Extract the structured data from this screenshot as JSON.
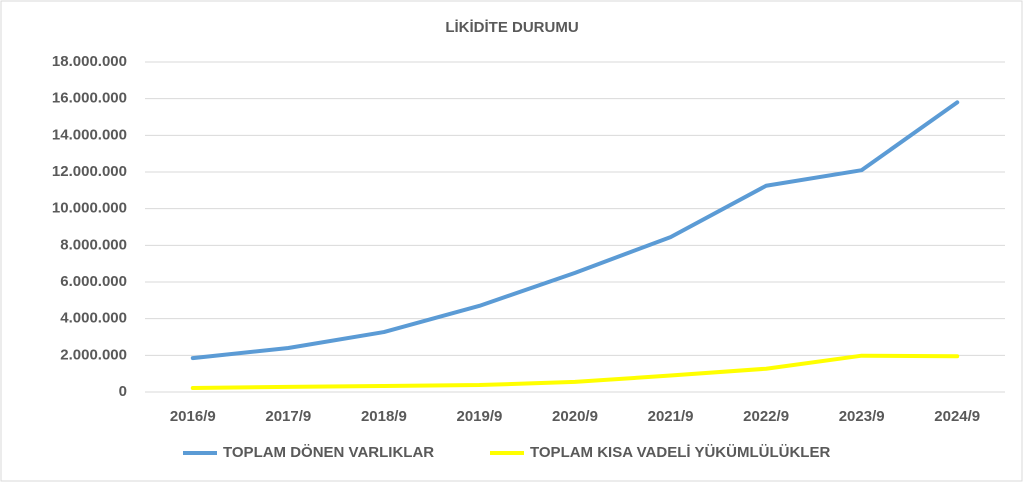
{
  "chart_data": {
    "type": "line",
    "title": "LİKİDİTE DURUMU",
    "categories": [
      "2016/9",
      "2017/9",
      "2018/9",
      "2019/9",
      "2020/9",
      "2021/9",
      "2022/9",
      "2023/9",
      "2024/9"
    ],
    "series": [
      {
        "name": "TOPLAM DÖNEN VARLIKLAR",
        "color": "#5b9bd5",
        "values": [
          1850000,
          2400000,
          3270000,
          4700000,
          6500000,
          8450000,
          11250000,
          12100000,
          15800000
        ]
      },
      {
        "name": "TOPLAM KISA VADELİ YÜKÜMLÜLÜKLER",
        "color": "#ffff00",
        "values": [
          220000,
          280000,
          330000,
          380000,
          550000,
          900000,
          1270000,
          1980000,
          1950000
        ]
      }
    ],
    "ylim": [
      0,
      18000000
    ],
    "yticks": [
      0,
      {
        "value": 2000000,
        "label": "2.000.000"
      },
      {
        "value": 4000000,
        "label": "4.000.000"
      },
      {
        "value": 6000000,
        "label": "6.000.000"
      },
      {
        "value": 8000000,
        "label": "8.000.000"
      },
      {
        "value": 10000000,
        "label": "10.000.000"
      },
      {
        "value": 12000000,
        "label": "12.000.000"
      },
      {
        "value": 14000000,
        "label": "14.000.000"
      },
      {
        "value": 16000000,
        "label": "16.000.000"
      },
      {
        "value": 18000000,
        "label": "18.000.000"
      }
    ],
    "grid": true,
    "legend": "bottom"
  }
}
